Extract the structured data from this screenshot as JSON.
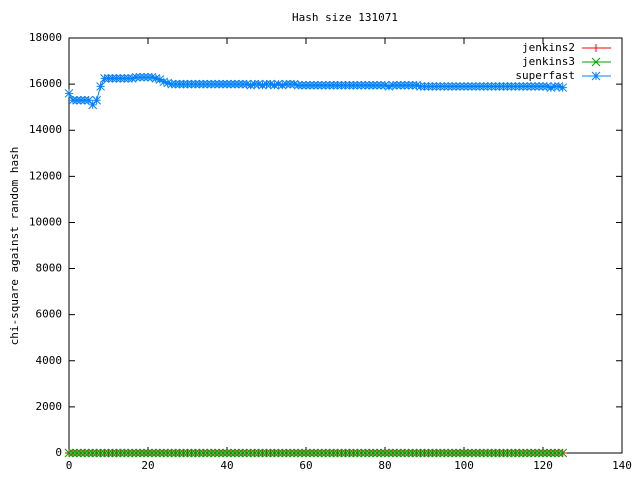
{
  "chart_data": {
    "type": "line",
    "title": "Hash size 131071",
    "y_label": "chi-square against random hash",
    "x": [
      0,
      1,
      2,
      3,
      4,
      5,
      6,
      7,
      8,
      9,
      10,
      11,
      12,
      13,
      14,
      15,
      16,
      17,
      18,
      19,
      20,
      21,
      22,
      23,
      24,
      25,
      26,
      27,
      28,
      29,
      30,
      31,
      32,
      33,
      34,
      35,
      36,
      37,
      38,
      39,
      40,
      41,
      42,
      43,
      44,
      45,
      46,
      47,
      48,
      49,
      50,
      51,
      52,
      53,
      54,
      55,
      56,
      57,
      58,
      59,
      60,
      61,
      62,
      63,
      64,
      65,
      66,
      67,
      68,
      69,
      70,
      71,
      72,
      73,
      74,
      75,
      76,
      77,
      78,
      79,
      80,
      81,
      82,
      83,
      84,
      85,
      86,
      87,
      88,
      89,
      90,
      91,
      92,
      93,
      94,
      95,
      96,
      97,
      98,
      99,
      100,
      101,
      102,
      103,
      104,
      105,
      106,
      107,
      108,
      109,
      110,
      111,
      112,
      113,
      114,
      115,
      116,
      117,
      118,
      119,
      120,
      121,
      122,
      123,
      124,
      125
    ],
    "series": [
      {
        "name": "jenkins2",
        "color": "#ff0000",
        "marker": "plus",
        "values": [
          0,
          0,
          0,
          0,
          0,
          0,
          0,
          0,
          0,
          0,
          0,
          0,
          0,
          0,
          0,
          0,
          0,
          0,
          0,
          0,
          0,
          0,
          0,
          0,
          0,
          0,
          0,
          0,
          0,
          0,
          0,
          0,
          0,
          0,
          0,
          0,
          0,
          0,
          0,
          0,
          0,
          0,
          0,
          0,
          0,
          0,
          0,
          0,
          0,
          0,
          0,
          0,
          0,
          0,
          0,
          0,
          0,
          0,
          0,
          0,
          0,
          0,
          0,
          0,
          0,
          0,
          0,
          0,
          0,
          0,
          0,
          0,
          0,
          0,
          0,
          0,
          0,
          0,
          0,
          0,
          0,
          0,
          0,
          0,
          0,
          0,
          0,
          0,
          0,
          0,
          0,
          0,
          0,
          0,
          0,
          0,
          0,
          0,
          0,
          0,
          0,
          0,
          0,
          0,
          0,
          0,
          0,
          0,
          0,
          0,
          0,
          0,
          0,
          0,
          0,
          0,
          0,
          0,
          0,
          0,
          0,
          0,
          0,
          0,
          0,
          0
        ]
      },
      {
        "name": "jenkins3",
        "color": "#00a000",
        "marker": "cross",
        "values": [
          0,
          0,
          0,
          0,
          0,
          0,
          0,
          0,
          0,
          0,
          0,
          0,
          0,
          0,
          0,
          0,
          0,
          0,
          0,
          0,
          0,
          0,
          0,
          0,
          0,
          0,
          0,
          0,
          0,
          0,
          0,
          0,
          0,
          0,
          0,
          0,
          0,
          0,
          0,
          0,
          0,
          0,
          0,
          0,
          0,
          0,
          0,
          0,
          0,
          0,
          0,
          0,
          0,
          0,
          0,
          0,
          0,
          0,
          0,
          0,
          0,
          0,
          0,
          0,
          0,
          0,
          0,
          0,
          0,
          0,
          0,
          0,
          0,
          0,
          0,
          0,
          0,
          0,
          0,
          0,
          0,
          0,
          0,
          0,
          0,
          0,
          0,
          0,
          0,
          0,
          0,
          0,
          0,
          0,
          0,
          0,
          0,
          0,
          0,
          0,
          0,
          0,
          0,
          0,
          0,
          0,
          0,
          0,
          0,
          0,
          0,
          0,
          0,
          0,
          0,
          0,
          0,
          0,
          0,
          0,
          0,
          0,
          0,
          0,
          0,
          0
        ]
      },
      {
        "name": "superfast",
        "color": "#0080ff",
        "marker": "star",
        "values": [
          15600,
          15300,
          15300,
          15300,
          15300,
          15300,
          15100,
          15300,
          15900,
          16250,
          16250,
          16250,
          16250,
          16250,
          16250,
          16250,
          16250,
          16300,
          16300,
          16300,
          16300,
          16300,
          16250,
          16200,
          16100,
          16050,
          16000,
          16000,
          16000,
          16000,
          16000,
          16000,
          16000,
          16000,
          16000,
          16000,
          16000,
          16000,
          16000,
          16000,
          16000,
          16000,
          16000,
          16000,
          16000,
          16000,
          15950,
          16000,
          16000,
          15950,
          16000,
          16000,
          15950,
          16000,
          15950,
          16000,
          16000,
          16000,
          15950,
          15950,
          15950,
          15950,
          15950,
          15950,
          15950,
          15950,
          15950,
          15950,
          15950,
          15950,
          15950,
          15950,
          15950,
          15950,
          15950,
          15950,
          15950,
          15950,
          15950,
          15950,
          15950,
          15900,
          15950,
          15950,
          15950,
          15950,
          15950,
          15950,
          15950,
          15900,
          15900,
          15900,
          15900,
          15900,
          15900,
          15900,
          15900,
          15900,
          15900,
          15900,
          15900,
          15900,
          15900,
          15900,
          15900,
          15900,
          15900,
          15900,
          15900,
          15900,
          15900,
          15900,
          15900,
          15900,
          15900,
          15900,
          15900,
          15900,
          15900,
          15900,
          15900,
          15900,
          15850,
          15900,
          15900,
          15850
        ]
      }
    ],
    "xlim": [
      0,
      140
    ],
    "xticks": [
      0,
      20,
      40,
      60,
      80,
      100,
      120,
      140
    ],
    "ylim": [
      0,
      18000
    ],
    "yticks": [
      0,
      2000,
      4000,
      6000,
      8000,
      10000,
      12000,
      14000,
      16000,
      18000
    ],
    "legend": "top-right"
  }
}
